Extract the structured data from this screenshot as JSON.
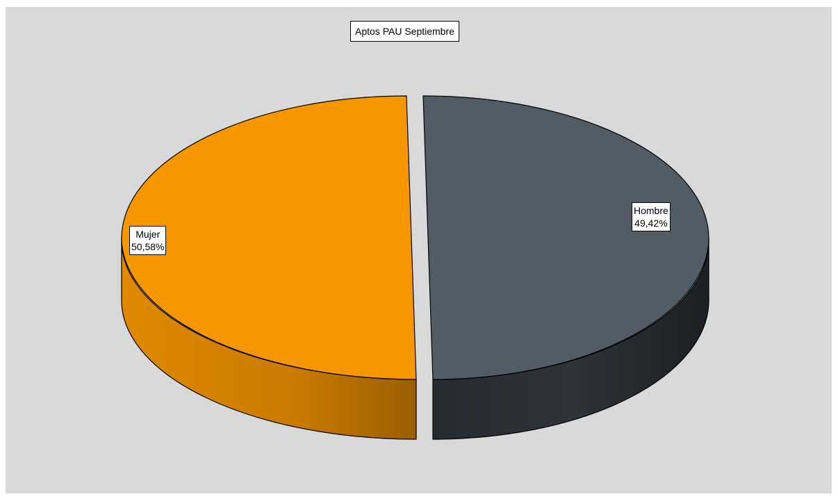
{
  "chart_data": {
    "type": "pie",
    "title": "Aptos PAU Septiembre",
    "slices": [
      {
        "name": "Hombre",
        "value": 49.42,
        "label": "49,42%",
        "color": "#525c66",
        "side_color": "#2a2f34"
      },
      {
        "name": "Mujer",
        "value": 50.58,
        "label": "50,58%",
        "color": "#f79700",
        "side_color": "#d88200"
      }
    ],
    "style": "3d-exploded"
  },
  "background": "#d9d9d9"
}
